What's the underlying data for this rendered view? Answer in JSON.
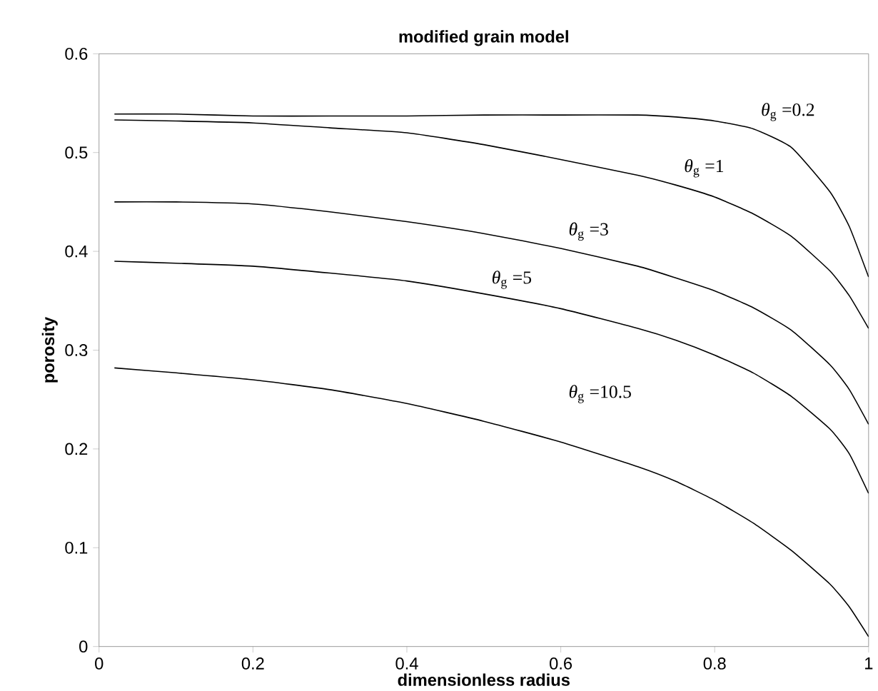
{
  "chart_data": {
    "type": "line",
    "title": "modified grain model",
    "xlabel": "dimensionless radius",
    "ylabel": "porosity",
    "x": [
      0.02,
      0.1,
      0.2,
      0.3,
      0.4,
      0.5,
      0.6,
      0.7,
      0.75,
      0.8,
      0.85,
      0.9,
      0.95,
      0.975,
      1.0
    ],
    "series": [
      {
        "name": "*θ*$_{g}$ =0.2",
        "color": "#000000",
        "values": [
          0.539,
          0.539,
          0.537,
          0.537,
          0.537,
          0.538,
          0.538,
          0.538,
          0.536,
          0.532,
          0.524,
          0.505,
          0.46,
          0.425,
          0.374
        ]
      },
      {
        "name": "*θ*$_{g}$ =1",
        "color": "#000000",
        "values": [
          0.533,
          0.532,
          0.53,
          0.525,
          0.52,
          0.508,
          0.493,
          0.477,
          0.467,
          0.455,
          0.438,
          0.415,
          0.38,
          0.355,
          0.322
        ]
      },
      {
        "name": "*θ*$_{g}$ =3",
        "color": "#000000",
        "values": [
          0.45,
          0.45,
          0.448,
          0.44,
          0.43,
          0.418,
          0.403,
          0.385,
          0.373,
          0.36,
          0.343,
          0.32,
          0.285,
          0.26,
          0.225
        ]
      },
      {
        "name": "*θ*$_{g}$ =5",
        "color": "#000000",
        "values": [
          0.39,
          0.388,
          0.385,
          0.378,
          0.37,
          0.357,
          0.342,
          0.322,
          0.31,
          0.295,
          0.277,
          0.253,
          0.22,
          0.195,
          0.155
        ]
      },
      {
        "name": "*θ*$_{g}$ =10.5",
        "color": "#000000",
        "values": [
          0.282,
          0.277,
          0.27,
          0.26,
          0.246,
          0.228,
          0.207,
          0.182,
          0.167,
          0.148,
          0.125,
          0.097,
          0.063,
          0.04,
          0.01
        ]
      }
    ],
    "xlim": [
      0,
      1
    ],
    "ylim": [
      0,
      0.6
    ],
    "xticks": [
      0,
      0.2,
      0.4,
      0.6,
      0.8,
      1
    ],
    "yticks": [
      0,
      0.1,
      0.2,
      0.3,
      0.4,
      0.5,
      0.6
    ],
    "grid": false,
    "marker": "none",
    "line_style": "solid"
  }
}
